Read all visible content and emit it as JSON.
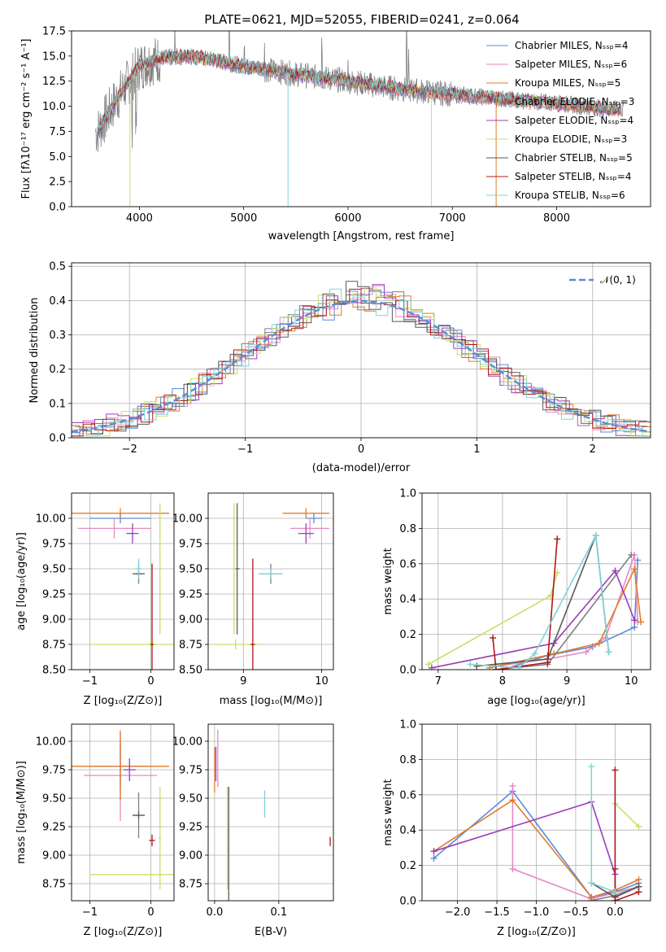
{
  "colors": {
    "chabrier_miles": "#5b8bd9",
    "salpeter_miles": "#e68ac5",
    "kroupa_miles": "#e07b2a",
    "chabrier_elodie": "#7f7f7f",
    "salpeter_elodie": "#9a3db8",
    "kroupa_elodie": "#c6e06a",
    "chabrier_stelib": "#5a5a5a",
    "salpeter_stelib": "#b01818",
    "kroupa_stelib": "#7fd4d8",
    "spectrum": "#808080",
    "normal": "#5b8bd9"
  },
  "chart_data": [
    {
      "id": "spectrum",
      "type": "line",
      "title": "PLATE=0621, MJD=52055, FIBERID=0241, z=0.064",
      "xlabel": "wavelength [Angstrom, rest frame]",
      "ylabel": "Flux [fλ10⁻¹⁷ erg cm⁻² s⁻¹ A⁻¹]",
      "xlim": [
        3350,
        8900
      ],
      "ylim": [
        0,
        17.5
      ],
      "xticks": [
        4000,
        5000,
        6000,
        7000,
        8000
      ],
      "yticks": [
        0.0,
        2.5,
        5.0,
        7.5,
        10.0,
        12.5,
        15.0,
        17.5
      ],
      "legend_position": "top-right",
      "legend": [
        "Chabrier MILES, Nₛₛₚ=4",
        "Salpeter MILES, Nₛₛₚ=6",
        "Kroupa MILES, Nₛₛₚ=5",
        "Chabrier ELODIE, Nₛₛₚ=3",
        "Salpeter ELODIE, Nₛₛₚ=4",
        "Kroupa ELODIE, Nₛₛₚ=3",
        "Chabrier STELIB, Nₛₛₚ=5",
        "Salpeter STELIB, Nₛₛₚ=4",
        "Kroupa STELIB, Nₛₛₚ=6"
      ],
      "continuum_points": [
        [
          3600,
          7.5
        ],
        [
          3800,
          11.0
        ],
        [
          4000,
          14.0
        ],
        [
          4200,
          14.8
        ],
        [
          4500,
          15.0
        ],
        [
          5000,
          14.0
        ],
        [
          5500,
          13.2
        ],
        [
          6000,
          12.5
        ],
        [
          6500,
          11.7
        ],
        [
          7000,
          11.2
        ],
        [
          7500,
          10.7
        ],
        [
          8000,
          10.3
        ],
        [
          8500,
          9.7
        ]
      ],
      "emission_lines": [
        [
          4340,
          3.0
        ],
        [
          4861,
          3.5
        ],
        [
          5007,
          2.5
        ],
        [
          6563,
          6.0
        ],
        [
          6583,
          3.0
        ],
        [
          5200,
          3.0
        ],
        [
          5750,
          3.5
        ],
        [
          6000,
          3.0
        ]
      ]
    },
    {
      "id": "residuals",
      "type": "histogram",
      "xlabel": "(data-model)/error",
      "ylabel": "Normed distribution",
      "xlim": [
        -2.5,
        2.5
      ],
      "ylim": [
        0,
        0.51
      ],
      "xticks": [
        -2,
        -1,
        0,
        1,
        2
      ],
      "yticks": [
        0.0,
        0.1,
        0.2,
        0.3,
        0.4,
        0.5
      ],
      "legend": [
        "𝒩(0, 1)"
      ],
      "legend_position": "top-right",
      "grid": true
    },
    {
      "id": "age_vs_Z",
      "type": "scatter",
      "xlabel": "Z [log₁₀(Z/Z⊙)]",
      "ylabel": "age  [log₁₀(age/yr)]",
      "xlim": [
        -1.3,
        0.38
      ],
      "ylim": [
        8.5,
        10.25
      ],
      "xticks": [
        -1,
        0
      ],
      "yticks": [
        8.5,
        8.75,
        9.0,
        9.25,
        9.5,
        9.75,
        10.0
      ],
      "grid": true,
      "points": [
        {
          "series": "chabrier_miles",
          "x": -0.5,
          "xerr": 0.5,
          "y": 10.0,
          "yerr": 0.05
        },
        {
          "series": "salpeter_miles",
          "x": -0.6,
          "xerr": 0.6,
          "y": 9.9,
          "yerr": 0.1
        },
        {
          "series": "kroupa_miles",
          "x": -0.5,
          "xerr": 0.8,
          "y": 10.05,
          "yerr": 0.05
        },
        {
          "series": "chabrier_elodie",
          "x": -0.2,
          "xerr": 0.05,
          "y": 9.45,
          "yerr": 0.1
        },
        {
          "series": "salpeter_elodie",
          "x": -0.3,
          "xerr": 0.1,
          "y": 9.85,
          "yerr": 0.1
        },
        {
          "series": "kroupa_elodie",
          "x": 0.0,
          "xerr": 1.0,
          "y": 8.75,
          "yerr": 0.05
        },
        {
          "series": "chabrier_stelib",
          "x": -0.2,
          "xerr": 0.1,
          "y": 9.45,
          "yerr": 0.02
        },
        {
          "series": "salpeter_stelib",
          "x": 0.02,
          "xerr": 0.03,
          "y": 8.75,
          "yerr": 0.8
        },
        {
          "series": "kroupa_stelib",
          "x": -0.2,
          "xerr": 0.05,
          "y": 9.5,
          "yerr": 0.1
        },
        {
          "series": "kroupa_elodie",
          "x": 0.15,
          "xerr": 0.02,
          "y": 9.5,
          "yerr": 0.65
        }
      ]
    },
    {
      "id": "age_vs_mass",
      "type": "scatter",
      "xlabel": "mass [log₁₀(M/M⊙)]",
      "ylabel": "",
      "xlim": [
        8.55,
        10.15
      ],
      "ylim": [
        8.5,
        10.25
      ],
      "xticks": [
        9,
        10
      ],
      "yticks": [
        8.5,
        8.75,
        9.0,
        9.25,
        9.5,
        9.75,
        10.0
      ],
      "grid": true,
      "points": [
        {
          "series": "chabrier_miles",
          "x": 9.9,
          "xerr": 0.1,
          "y": 10.0,
          "yerr": 0.05
        },
        {
          "series": "salpeter_miles",
          "x": 9.85,
          "xerr": 0.25,
          "y": 9.9,
          "yerr": 0.1
        },
        {
          "series": "kroupa_miles",
          "x": 9.8,
          "xerr": 0.3,
          "y": 10.05,
          "yerr": 0.05
        },
        {
          "series": "chabrier_elodie",
          "x": 9.35,
          "xerr": 0.15,
          "y": 9.45,
          "yerr": 0.1
        },
        {
          "series": "salpeter_elodie",
          "x": 9.8,
          "xerr": 0.1,
          "y": 9.85,
          "yerr": 0.1
        },
        {
          "series": "kroupa_elodie",
          "x": 8.9,
          "xerr": 0.3,
          "y": 8.75,
          "yerr": 0.05
        },
        {
          "series": "chabrier_stelib",
          "x": 8.92,
          "xerr": 0.03,
          "y": 9.5,
          "yerr": 0.65
        },
        {
          "series": "salpeter_stelib",
          "x": 9.12,
          "xerr": 0.03,
          "y": 8.75,
          "yerr": 0.85
        },
        {
          "series": "kroupa_stelib",
          "x": 9.35,
          "xerr": 0.15,
          "y": 9.45,
          "yerr": 0.05
        },
        {
          "series": "kroupa_elodie",
          "x": 8.88,
          "xerr": 0.02,
          "y": 9.5,
          "yerr": 0.65
        }
      ]
    },
    {
      "id": "weight_vs_age",
      "type": "line",
      "xlabel": "age  [log₁₀(age/yr)]",
      "ylabel": "mass weight",
      "xlim": [
        6.75,
        10.3
      ],
      "ylim": [
        0,
        1.0
      ],
      "xticks": [
        7,
        8,
        9,
        10
      ],
      "yticks": [
        0.0,
        0.2,
        0.4,
        0.6,
        0.8,
        1.0
      ],
      "grid": true,
      "series": [
        {
          "key": "chabrier_miles",
          "x": [
            8.0,
            8.7,
            9.4,
            10.05,
            10.1
          ],
          "y": [
            0.0,
            0.08,
            0.13,
            0.24,
            0.62
          ]
        },
        {
          "key": "salpeter_miles",
          "x": [
            7.9,
            8.7,
            9.3,
            9.6,
            10.05,
            10.1
          ],
          "y": [
            0.02,
            0.06,
            0.1,
            0.18,
            0.65,
            0.27
          ]
        },
        {
          "key": "kroupa_miles",
          "x": [
            7.8,
            8.8,
            9.5,
            10.05,
            10.15
          ],
          "y": [
            0.01,
            0.09,
            0.15,
            0.57,
            0.27
          ]
        },
        {
          "key": "chabrier_elodie",
          "x": [
            7.9,
            8.7,
            10.0
          ],
          "y": [
            0.0,
            0.03,
            0.65
          ]
        },
        {
          "key": "salpeter_elodie",
          "x": [
            6.9,
            8.8,
            9.75,
            10.05
          ],
          "y": [
            0.01,
            0.15,
            0.56,
            0.28
          ]
        },
        {
          "key": "kroupa_elodie",
          "x": [
            6.85,
            8.75,
            8.85
          ],
          "y": [
            0.03,
            0.42,
            0.55
          ]
        },
        {
          "key": "chabrier_stelib",
          "x": [
            7.6,
            8.7,
            9.45,
            9.65
          ],
          "y": [
            0.02,
            0.06,
            0.76,
            0.1
          ]
        },
        {
          "key": "salpeter_stelib",
          "x": [
            7.85,
            7.9,
            8.7,
            8.85
          ],
          "y": [
            0.18,
            0.0,
            0.04,
            0.74
          ]
        },
        {
          "key": "kroupa_stelib",
          "x": [
            7.5,
            8.25,
            8.5,
            9.45,
            9.65
          ],
          "y": [
            0.03,
            0.01,
            0.09,
            0.76,
            0.1
          ]
        }
      ]
    },
    {
      "id": "mass_vs_Z",
      "type": "scatter",
      "xlabel": "Z [log₁₀(Z/Z⊙)]",
      "ylabel": "mass [log₁₀(M/M⊙)]",
      "xlim": [
        -1.3,
        0.38
      ],
      "ylim": [
        8.6,
        10.15
      ],
      "xticks": [
        -1,
        0
      ],
      "yticks": [
        8.75,
        9.0,
        9.25,
        9.5,
        9.75,
        10.0
      ],
      "grid": true,
      "points": [
        {
          "series": "chabrier_miles",
          "x": -0.5,
          "xerr": 0.5,
          "y": 9.78,
          "yerr": 0.2
        },
        {
          "series": "salpeter_miles",
          "x": -0.5,
          "xerr": 0.6,
          "y": 9.7,
          "yerr": 0.4
        },
        {
          "series": "kroupa_miles",
          "x": -0.5,
          "xerr": 0.8,
          "y": 9.78,
          "yerr": 0.3
        },
        {
          "series": "chabrier_elodie",
          "x": -0.2,
          "xerr": 0.1,
          "y": 9.35,
          "yerr": 0.2
        },
        {
          "series": "salpeter_elodie",
          "x": -0.35,
          "xerr": 0.1,
          "y": 9.75,
          "yerr": 0.1
        },
        {
          "series": "kroupa_elodie",
          "x": 0.0,
          "xerr": 1.0,
          "y": 8.83,
          "yerr": 0.02
        },
        {
          "series": "chabrier_stelib",
          "x": -0.2,
          "xerr": 0.1,
          "y": 9.35,
          "yerr": 0.03
        },
        {
          "series": "salpeter_stelib",
          "x": 0.02,
          "xerr": 0.05,
          "y": 9.13,
          "yerr": 0.05
        },
        {
          "series": "kroupa_elodie",
          "x": 0.15,
          "xerr": 0.02,
          "y": 9.15,
          "yerr": 0.45
        }
      ]
    },
    {
      "id": "mass_vs_ebv",
      "type": "scatter",
      "xlabel": "E(B-V)",
      "ylabel": "",
      "xlim": [
        -0.01,
        0.185
      ],
      "ylim": [
        8.6,
        10.15
      ],
      "xticks": [
        0.0,
        0.1
      ],
      "yticks": [
        8.75,
        9.0,
        9.25,
        9.5,
        9.75,
        10.0
      ],
      "grid": true,
      "points": [
        {
          "series": "salpeter_miles",
          "x": 0.005,
          "xerr": 0,
          "y": 9.85,
          "yerr": 0.25
        },
        {
          "series": "kroupa_miles",
          "x": 0.0,
          "xerr": 0,
          "y": 9.75,
          "yerr": 0.2
        },
        {
          "series": "salpeter_elodie",
          "x": 0.002,
          "xerr": 0,
          "y": 9.8,
          "yerr": 0.15
        },
        {
          "series": "kroupa_elodie",
          "x": 0.02,
          "xerr": 0,
          "y": 9.15,
          "yerr": 0.45
        },
        {
          "series": "chabrier_stelib",
          "x": 0.022,
          "xerr": 0,
          "y": 9.1,
          "yerr": 0.5
        },
        {
          "series": "kroupa_stelib",
          "x": 0.078,
          "xerr": 0,
          "y": 9.45,
          "yerr": 0.12
        },
        {
          "series": "salpeter_stelib",
          "x": 0.18,
          "xerr": 0,
          "y": 9.12,
          "yerr": 0.04
        }
      ]
    },
    {
      "id": "weight_vs_Z",
      "type": "line",
      "xlabel": "Z [log₁₀(Z/Z⊙)]",
      "ylabel": "mass weight",
      "xlim": [
        -2.45,
        0.45
      ],
      "ylim": [
        0,
        1.0
      ],
      "xticks": [
        -2.0,
        -1.5,
        -1.0,
        -0.5,
        0.0
      ],
      "yticks": [
        0.0,
        0.2,
        0.4,
        0.6,
        0.8,
        1.0
      ],
      "grid": true,
      "series": [
        {
          "key": "chabrier_miles",
          "x": [
            -2.3,
            -1.3,
            -0.3,
            0.0,
            0.3
          ],
          "y": [
            0.24,
            0.62,
            0.02,
            0.05,
            0.1
          ]
        },
        {
          "key": "salpeter_miles",
          "x": [
            -1.3,
            -1.3,
            -0.3,
            0.3
          ],
          "y": [
            0.65,
            0.18,
            0.01,
            0.08
          ]
        },
        {
          "key": "kroupa_miles",
          "x": [
            -2.3,
            -1.3,
            -0.3,
            0.0,
            0.3
          ],
          "y": [
            0.28,
            0.57,
            0.02,
            0.06,
            0.12
          ]
        },
        {
          "key": "chabrier_elodie",
          "x": [
            -0.3,
            0.0,
            0.3
          ],
          "y": [
            0.0,
            0.03,
            0.08
          ]
        },
        {
          "key": "salpeter_elodie",
          "x": [
            -2.3,
            -0.3,
            0.0,
            0.0
          ],
          "y": [
            0.28,
            0.56,
            0.15,
            0.0
          ]
        },
        {
          "key": "kroupa_elodie",
          "x": [
            0.0,
            0.3
          ],
          "y": [
            0.55,
            0.42
          ]
        },
        {
          "key": "chabrier_stelib",
          "x": [
            -0.3,
            0.0,
            0.3
          ],
          "y": [
            0.1,
            0.02,
            0.08
          ]
        },
        {
          "key": "salpeter_stelib",
          "x": [
            0.0,
            0.0,
            0.0,
            0.3
          ],
          "y": [
            0.74,
            0.18,
            0.0,
            0.05
          ]
        },
        {
          "key": "kroupa_stelib",
          "x": [
            -0.3,
            -0.3,
            0.0
          ],
          "y": [
            0.76,
            0.1,
            0.05
          ]
        }
      ]
    }
  ]
}
